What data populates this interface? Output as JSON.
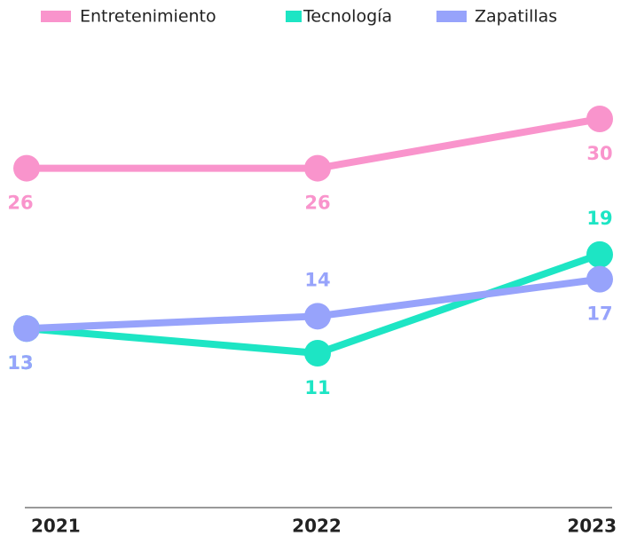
{
  "chart_data": {
    "type": "line",
    "categories": [
      "2021",
      "2022",
      "2023"
    ],
    "series": [
      {
        "name": "Entretenimiento",
        "color": "#f994cc",
        "values": [
          26,
          26,
          30
        ]
      },
      {
        "name": "Tecnología",
        "color": "#1de5c4",
        "values": [
          13,
          11,
          19
        ]
      },
      {
        "name": "Zapatillas",
        "color": "#97a3fb",
        "values": [
          13,
          14,
          17
        ]
      }
    ],
    "legend": "top"
  }
}
